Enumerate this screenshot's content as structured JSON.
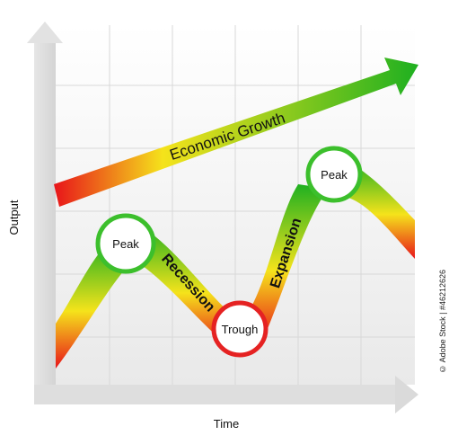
{
  "diagram": {
    "axes": {
      "x_label": "Time",
      "y_label": "Output"
    },
    "trend_label": "Economic Growth",
    "phase_labels": {
      "recession": "Recession",
      "expansion": "Expansion"
    },
    "nodes": [
      {
        "id": "peak-1",
        "label": "Peak"
      },
      {
        "id": "trough",
        "label": "Trough"
      },
      {
        "id": "peak-2",
        "label": "Peak"
      }
    ],
    "colors": {
      "gradient_start": "#e8141a",
      "gradient_mid": "#f5e31b",
      "gradient_end": "#1fb020",
      "grid_line": "#d8d8d8",
      "axis_arrow": "#e0e0e0"
    }
  },
  "watermark": "© Adobe Stock | #46212626"
}
